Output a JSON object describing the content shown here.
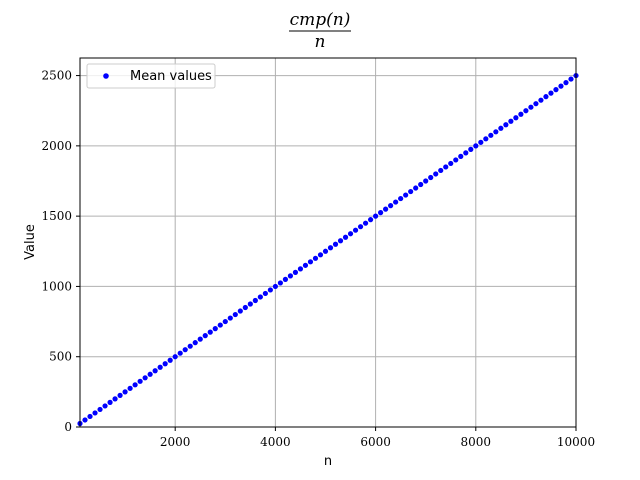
{
  "chart_data": {
    "type": "scatter",
    "title": {
      "numerator": "cmp(n)",
      "denominator": "n"
    },
    "xlabel": "n",
    "ylabel": "Value",
    "xlim": [
      100,
      10000
    ],
    "ylim": [
      0,
      2625
    ],
    "xticks": [
      2000,
      4000,
      6000,
      8000,
      10000
    ],
    "yticks": [
      0,
      500,
      1000,
      1500,
      2000,
      2500
    ],
    "grid": true,
    "legend": {
      "position": "top-left"
    },
    "series": [
      {
        "name": "Mean values",
        "color": "#0000ff",
        "marker": "circle",
        "x_start": 100,
        "x_step": 100,
        "count": 100,
        "slope": 0.25,
        "intercept": 0
      }
    ]
  }
}
